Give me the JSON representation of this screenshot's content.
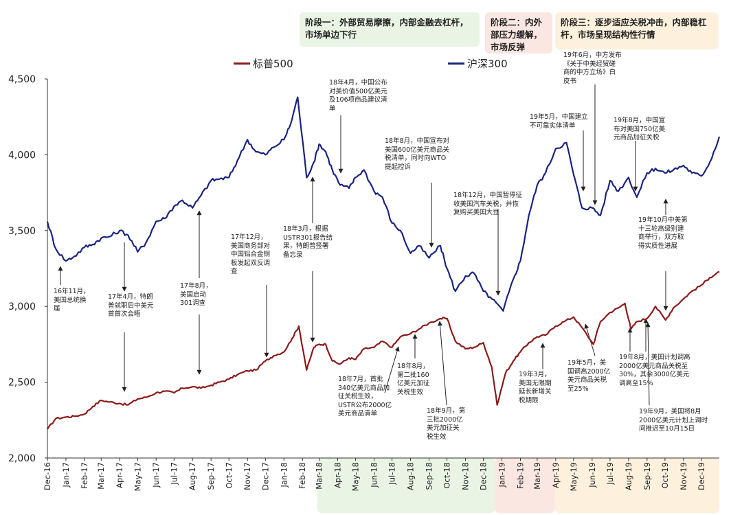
{
  "chart_data": {
    "type": "line",
    "title": "",
    "xlabel": "",
    "ylabel": "",
    "ylim": [
      2000,
      4500
    ],
    "yticks": [
      "2,000",
      "2,500",
      "3,000",
      "3,500",
      "4,000",
      "4,500"
    ],
    "xticks": [
      "Dec-16",
      "Jan-17",
      "Feb-17",
      "Mar-17",
      "Apr-17",
      "May-17",
      "Jun-17",
      "Jul-17",
      "Aug-17",
      "Sep-17",
      "Oct-17",
      "Nov-17",
      "Dec-17",
      "Jan-18",
      "Feb-18",
      "Mar-18",
      "Apr-18",
      "May-18",
      "Jun-18",
      "Jul-18",
      "Aug-18",
      "Sep-18",
      "Oct-18",
      "Nov-18",
      "Dec-18",
      "Jan-19",
      "Feb-19",
      "Mar-19",
      "Apr-19",
      "May-19",
      "Jun-19",
      "Jul-19",
      "Aug-19",
      "Sep-19",
      "Oct-19",
      "Nov-19",
      "Dec-19"
    ],
    "legend_position": "top",
    "series": [
      {
        "name": "标普500",
        "color": "#8b1a1a",
        "x": [
          "2016-12-01",
          "2016-12-15",
          "2017-01-01",
          "2017-01-15",
          "2017-02-01",
          "2017-02-15",
          "2017-03-01",
          "2017-03-15",
          "2017-04-01",
          "2017-04-15",
          "2017-05-01",
          "2017-05-15",
          "2017-06-01",
          "2017-06-15",
          "2017-07-01",
          "2017-07-15",
          "2017-08-01",
          "2017-08-15",
          "2017-09-01",
          "2017-09-15",
          "2017-10-01",
          "2017-10-15",
          "2017-11-01",
          "2017-11-15",
          "2017-12-01",
          "2017-12-15",
          "2018-01-01",
          "2018-01-15",
          "2018-01-26",
          "2018-02-08",
          "2018-02-20",
          "2018-03-01",
          "2018-03-12",
          "2018-03-23",
          "2018-04-05",
          "2018-04-20",
          "2018-05-01",
          "2018-05-15",
          "2018-06-01",
          "2018-06-15",
          "2018-07-01",
          "2018-07-15",
          "2018-08-01",
          "2018-08-15",
          "2018-09-01",
          "2018-09-20",
          "2018-10-01",
          "2018-10-15",
          "2018-11-01",
          "2018-11-15",
          "2018-12-01",
          "2018-12-15",
          "2018-12-24",
          "2019-01-07",
          "2019-01-20",
          "2019-02-01",
          "2019-02-15",
          "2019-03-01",
          "2019-03-15",
          "2019-04-01",
          "2019-04-15",
          "2019-05-01",
          "2019-05-15",
          "2019-06-03",
          "2019-06-15",
          "2019-07-01",
          "2019-07-15",
          "2019-07-26",
          "2019-08-05",
          "2019-08-15",
          "2019-09-01",
          "2019-09-15",
          "2019-10-02",
          "2019-10-15",
          "2019-11-01",
          "2019-11-15",
          "2019-12-01",
          "2019-12-15",
          "2019-12-31"
        ],
        "values": [
          2190,
          2260,
          2270,
          2275,
          2290,
          2340,
          2380,
          2370,
          2360,
          2350,
          2390,
          2400,
          2430,
          2440,
          2430,
          2460,
          2470,
          2460,
          2480,
          2500,
          2520,
          2550,
          2575,
          2580,
          2640,
          2675,
          2700,
          2790,
          2870,
          2580,
          2730,
          2750,
          2750,
          2640,
          2620,
          2660,
          2650,
          2720,
          2730,
          2770,
          2730,
          2800,
          2820,
          2850,
          2890,
          2920,
          2920,
          2770,
          2720,
          2730,
          2760,
          2600,
          2350,
          2560,
          2640,
          2700,
          2760,
          2800,
          2810,
          2870,
          2900,
          2930,
          2860,
          2750,
          2900,
          2960,
          2990,
          3020,
          2850,
          2900,
          2920,
          3000,
          2910,
          2990,
          3050,
          3100,
          3140,
          3190,
          3230
        ]
      },
      {
        "name": "沪深300",
        "color": "#1a237e",
        "x": [
          "2016-12-01",
          "2016-12-15",
          "2017-01-01",
          "2017-01-15",
          "2017-02-01",
          "2017-02-15",
          "2017-03-01",
          "2017-03-15",
          "2017-04-01",
          "2017-04-15",
          "2017-05-01",
          "2017-05-15",
          "2017-06-01",
          "2017-06-15",
          "2017-07-01",
          "2017-07-15",
          "2017-08-01",
          "2017-08-15",
          "2017-09-01",
          "2017-09-15",
          "2017-10-01",
          "2017-10-15",
          "2017-11-01",
          "2017-11-15",
          "2017-12-01",
          "2017-12-15",
          "2018-01-01",
          "2018-01-12",
          "2018-01-24",
          "2018-02-08",
          "2018-02-20",
          "2018-03-01",
          "2018-03-12",
          "2018-03-23",
          "2018-04-05",
          "2018-04-20",
          "2018-05-01",
          "2018-05-15",
          "2018-06-01",
          "2018-06-15",
          "2018-07-01",
          "2018-07-15",
          "2018-08-01",
          "2018-08-15",
          "2018-09-01",
          "2018-09-20",
          "2018-10-01",
          "2018-10-15",
          "2018-11-01",
          "2018-11-15",
          "2018-12-01",
          "2018-12-15",
          "2019-01-03",
          "2019-01-20",
          "2019-02-01",
          "2019-02-15",
          "2019-03-01",
          "2019-03-15",
          "2019-04-01",
          "2019-04-19",
          "2019-05-01",
          "2019-05-15",
          "2019-06-01",
          "2019-06-15",
          "2019-07-01",
          "2019-07-15",
          "2019-08-01",
          "2019-08-15",
          "2019-09-01",
          "2019-09-15",
          "2019-10-01",
          "2019-10-15",
          "2019-11-01",
          "2019-11-15",
          "2019-12-01",
          "2019-12-15",
          "2019-12-31"
        ],
        "values": [
          3560,
          3380,
          3300,
          3330,
          3390,
          3410,
          3450,
          3460,
          3500,
          3470,
          3360,
          3420,
          3560,
          3580,
          3660,
          3700,
          3650,
          3730,
          3830,
          3840,
          3850,
          3960,
          4100,
          4020,
          4000,
          4050,
          4100,
          4200,
          4380,
          3850,
          3950,
          4070,
          4020,
          3900,
          3800,
          3780,
          3850,
          3900,
          3760,
          3720,
          3550,
          3500,
          3350,
          3400,
          3320,
          3400,
          3250,
          3100,
          3200,
          3220,
          3100,
          3050,
          2970,
          3180,
          3300,
          3600,
          3800,
          3880,
          4040,
          4080,
          3870,
          3650,
          3650,
          3600,
          3830,
          3760,
          3850,
          3720,
          3880,
          3910,
          3880,
          3900,
          3930,
          3880,
          3860,
          3950,
          4120
        ]
      }
    ]
  },
  "phases": [
    {
      "label": "阶段一：外部贸易摩擦，内部金融去杠杆，市场单边下行",
      "color": "#e9f4e4"
    },
    {
      "label": "阶段二：内外部压力缓解，市场反弹",
      "color": "#fbe7e1"
    },
    {
      "label": "阶段三：逐步适应关税冲击，内部稳杠杆，市场呈现结构性行情",
      "color": "#fdf1dd"
    }
  ],
  "annotations": [
    {
      "text": "16年11月，\n美国总统换\n届"
    },
    {
      "text": "17年4月，特朗\n普就职后中美元\n首首次会晤"
    },
    {
      "text": "17年8月，\n美国启动\n301调查"
    },
    {
      "text": "17年12月，\n美国商务部对\n中国铝合金铜\n板发起双反调\n查"
    },
    {
      "text": "18年3月，根据\nUSTR301报告结\n果，特朗普签署\n备忘录"
    },
    {
      "text": "18年4月，中国公布\n对美价值500亿美元\n及106项商品建议清\n单"
    },
    {
      "text": "18年7月，首批\n340亿美元商品加\n征关税生效，\nUSTR公布2000亿\n美元商品清单"
    },
    {
      "text": "18年8月，\n第二批160\n亿美元加征\n关税生效"
    },
    {
      "text": "18年8月，中国宣布对\n美国600亿美元商品关\n税清单，同时向WTO\n提起控诉"
    },
    {
      "text": "18年9月，第\n三批2000亿\n美元加征关\n税生效"
    },
    {
      "text": "18年12月，中国暂停征\n收美国汽车关税，并恢\n复购买美国大豆"
    },
    {
      "text": "19年3月，\n美国无限期\n延长新增关\n税期限"
    },
    {
      "text": "19年5月，中国建立\n不可靠实体清单"
    },
    {
      "text": "19年5月，美\n国调高2000亿\n美元商品关税\n至25%"
    },
    {
      "text": "19年6月，中方发布\n《关于中美经贸磋\n商的中方立场》白\n皮书"
    },
    {
      "text": "19年8月，中国宣\n布对美国750亿美\n元商品加征关税"
    },
    {
      "text": "19年8月，美国计划调高\n2000亿美元商品关税至\n30%，其余3000亿美元\n调高至15%"
    },
    {
      "text": "19年10月中美第\n十三轮高级别建\n商举行，双方取\n得实质性进展"
    },
    {
      "text": "19年9月，美国将8月\n2000亿美元计划上调时\n间推迟至10月15日"
    }
  ]
}
